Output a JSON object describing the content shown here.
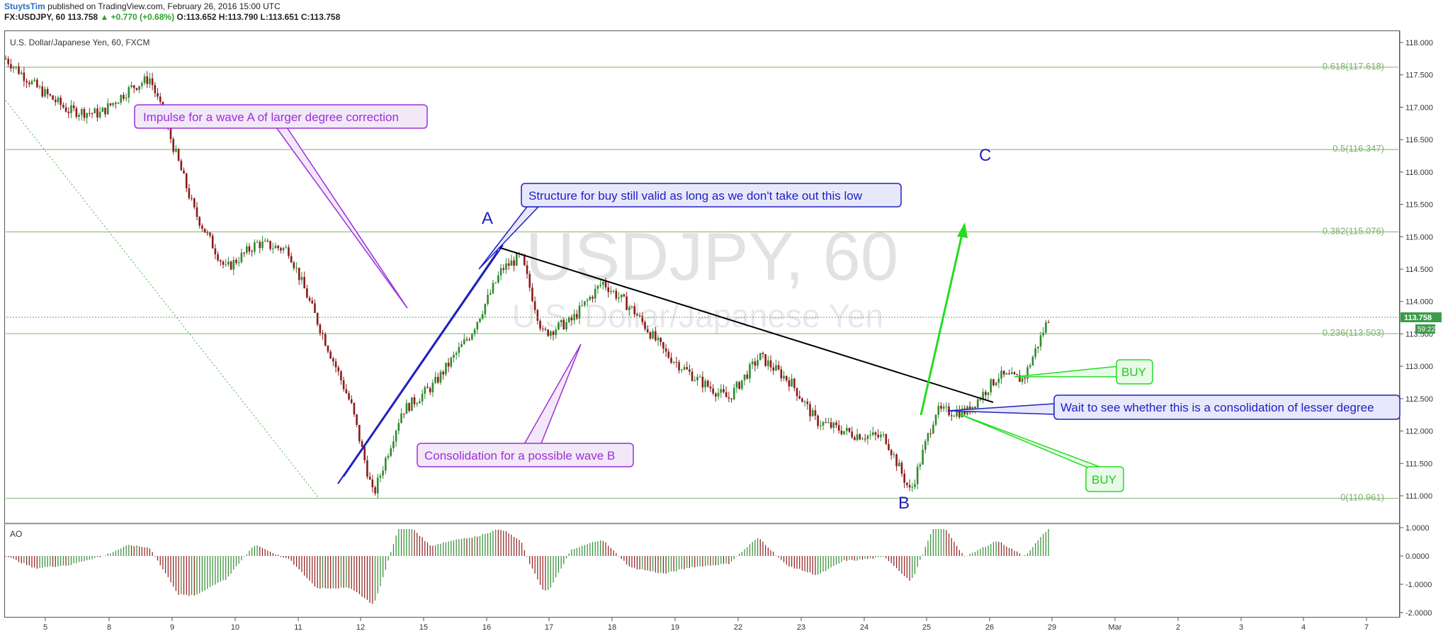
{
  "header": {
    "author": "StuytsTim",
    "published": "published on TradingView.com, February 26, 2016 15:00 UTC",
    "symbol": "FX:USDJPY, 60",
    "last": "113.758",
    "change": "▲ +0.770 (+0.68%)",
    "ohlc": "O:113.652 H:113.790 L:113.651 C:113.758"
  },
  "chart_data": {
    "type": "candlestick",
    "title": "U.S. Dollar/Japanese Yen, 60, FXCM",
    "watermark": "USDJPY, 60",
    "watermark_sub": "U.S. Dollar/Japanese Yen",
    "ylim": [
      110.7,
      118.1
    ],
    "y_ticks": [
      "118.000",
      "117.500",
      "117.000",
      "116.500",
      "116.000",
      "115.500",
      "115.000",
      "114.500",
      "114.000",
      "113.500",
      "113.000",
      "112.500",
      "112.000",
      "111.500",
      "111.000"
    ],
    "x_ticks": [
      "5",
      "8",
      "9",
      "10",
      "11",
      "12",
      "15",
      "16",
      "17",
      "18",
      "19",
      "22",
      "23",
      "24",
      "25",
      "26",
      "29",
      "Mar",
      "2",
      "3",
      "4",
      "7"
    ],
    "last_price": "113.758",
    "countdown": "59:22",
    "fib_levels": [
      {
        "label": "0.618(117.618)",
        "value": 117.618
      },
      {
        "label": "0.5(116.347)",
        "value": 116.347
      },
      {
        "label": "0.382(115.076)",
        "value": 115.076
      },
      {
        "label": "0.236(113.503)",
        "value": 113.503
      },
      {
        "label": "0(110.961)",
        "value": 110.961
      }
    ],
    "price_path": [
      [
        0,
        117.75
      ],
      [
        0.5,
        117.3
      ],
      [
        1,
        116.95
      ],
      [
        1.5,
        116.9
      ],
      [
        2,
        117.3
      ],
      [
        2.3,
        117.45
      ],
      [
        2.6,
        116.6
      ],
      [
        3,
        115.4
      ],
      [
        3.5,
        114.5
      ],
      [
        4,
        114.9
      ],
      [
        4.5,
        114.8
      ],
      [
        5,
        113.6
      ],
      [
        5.5,
        112.4
      ],
      [
        5.85,
        111.0
      ],
      [
        6.3,
        112.3
      ],
      [
        6.8,
        112.7
      ],
      [
        7.4,
        113.5
      ],
      [
        7.9,
        114.5
      ],
      [
        8.2,
        114.7
      ],
      [
        8.55,
        113.5
      ],
      [
        9,
        113.7
      ],
      [
        9.5,
        114.3
      ],
      [
        10,
        113.85
      ],
      [
        10.5,
        113.2
      ],
      [
        11,
        112.8
      ],
      [
        11.5,
        112.5
      ],
      [
        12,
        113.15
      ],
      [
        12.5,
        112.75
      ],
      [
        12.9,
        112.15
      ],
      [
        13.5,
        111.95
      ],
      [
        14,
        111.9
      ],
      [
        14.4,
        111.05
      ],
      [
        14.8,
        112.3
      ],
      [
        15.3,
        112.3
      ],
      [
        15.8,
        112.85
      ],
      [
        16.2,
        112.8
      ],
      [
        16.6,
        113.75
      ]
    ],
    "ao": {
      "label": "AO",
      "ylim": [
        -2.0,
        1.0
      ],
      "y_ticks": [
        "1.0000",
        "0.0000",
        "-1.0000",
        "-2.0000"
      ]
    }
  },
  "annotations": {
    "wave_a": "A",
    "wave_b": "B",
    "wave_c": "C",
    "impulse": "Impulse for a wave A of larger degree correction",
    "structure": "Structure for buy still valid as long as we don't take out this low",
    "consolidation": "Consolidation for a possible wave B",
    "wait": "Wait to see whether this is a consolidation of lesser degree",
    "buy1": "BUY",
    "buy2": "BUY"
  },
  "colors": {
    "up": "#2e8b2e",
    "down": "#8b1a1a",
    "fib": "#7cb26a",
    "purple": "#9b30d9",
    "blue": "#2020c0",
    "green": "#22dd22"
  }
}
